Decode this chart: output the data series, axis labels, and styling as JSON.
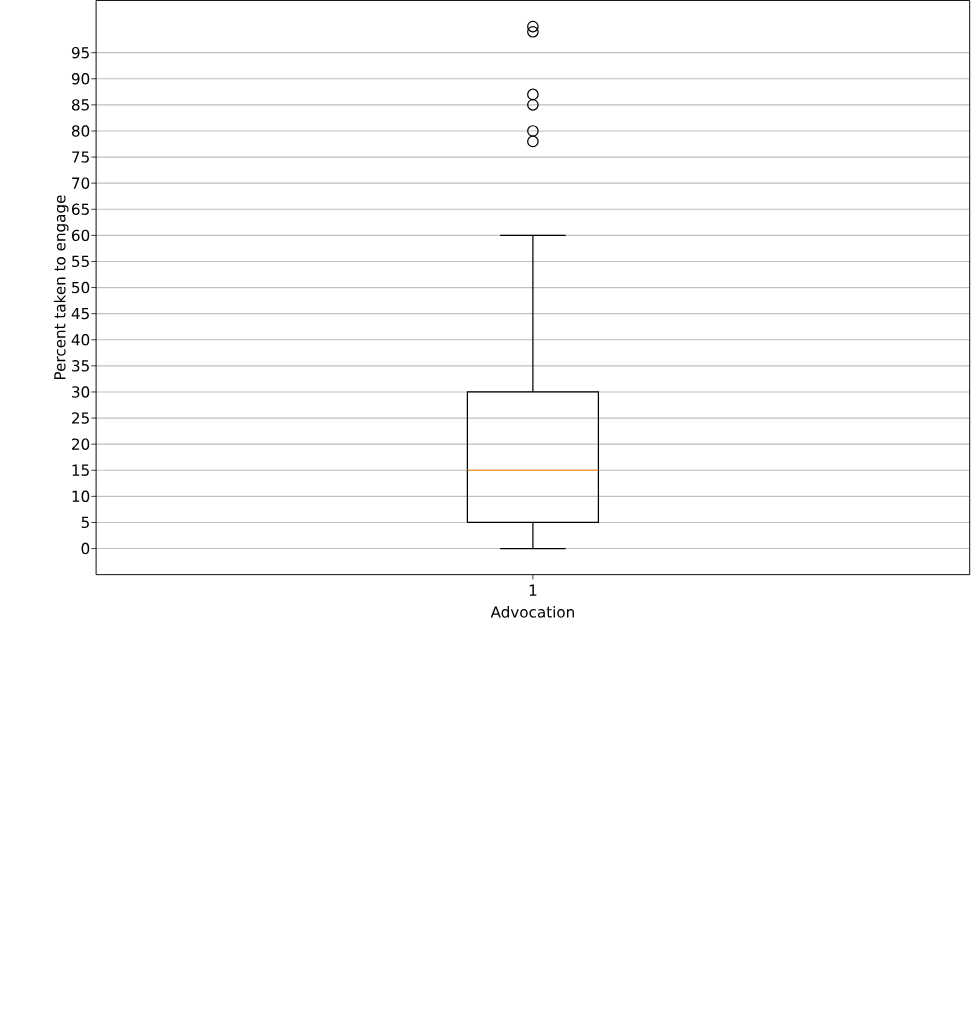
{
  "chart_data": {
    "type": "box",
    "categories": [
      "1"
    ],
    "xlabel": "Advocation",
    "ylabel": "Percent taken to engage",
    "ylim": [
      -5,
      105
    ],
    "yticks": [
      0,
      5,
      10,
      15,
      20,
      25,
      30,
      35,
      40,
      45,
      50,
      55,
      60,
      65,
      70,
      75,
      80,
      85,
      90,
      95
    ],
    "grid": "y",
    "series": [
      {
        "color": "#000000",
        "boxes": [
          {
            "low": 0,
            "q1": 5,
            "median": 15,
            "q3": 30,
            "high": 60,
            "outliers": [
              100,
              99,
              87,
              85,
              80,
              78
            ]
          }
        ]
      }
    ]
  }
}
